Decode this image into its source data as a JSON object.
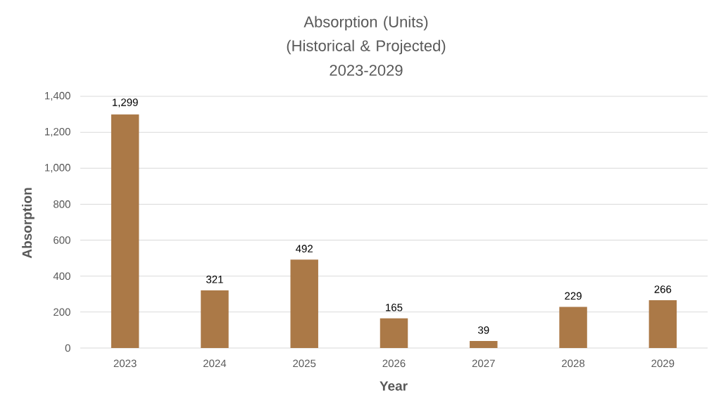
{
  "chart_data": {
    "type": "bar",
    "title": "Absorption (Units) (Historical & Projected)",
    "subtitle": "2023-2029",
    "xlabel": "Year",
    "ylabel": "Absorption",
    "categories": [
      "2023",
      "2024",
      "2025",
      "2026",
      "2027",
      "2028",
      "2029"
    ],
    "values": [
      1299,
      321,
      492,
      165,
      39,
      229,
      266
    ],
    "value_labels": [
      "1,299",
      "321",
      "492",
      "165",
      "39",
      "229",
      "266"
    ],
    "color": "#ab7947",
    "ylim": [
      0,
      1400
    ],
    "yticks": [
      0,
      200,
      400,
      600,
      800,
      {
        "value": 1000,
        "label": "1,000"
      },
      {
        "value": 1200,
        "label": "1,200"
      },
      {
        "value": 1400,
        "label": "1,400"
      }
    ],
    "grid": "y"
  }
}
